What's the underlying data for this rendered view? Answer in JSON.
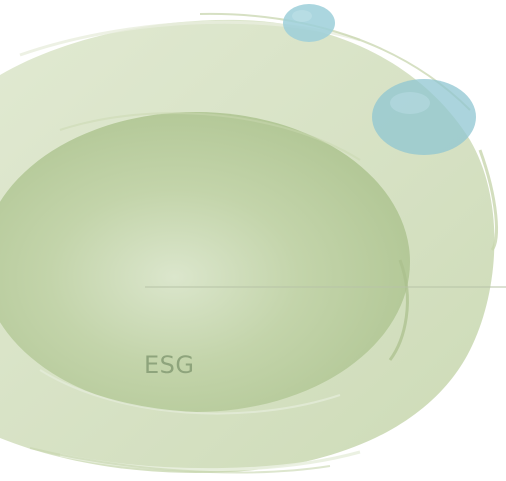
{
  "graphic": {
    "label": "ESG",
    "colors": {
      "outer_ring": "#d7e2c4",
      "inner_disc": "#b7cb9a",
      "inner_highlight": "#dbe6cc",
      "bubble": "#9ccfd9",
      "leader_line": "#b7c3a7",
      "label": "#8ea47c"
    },
    "icons": [
      "large-bubble-icon",
      "small-bubble-icon"
    ]
  }
}
